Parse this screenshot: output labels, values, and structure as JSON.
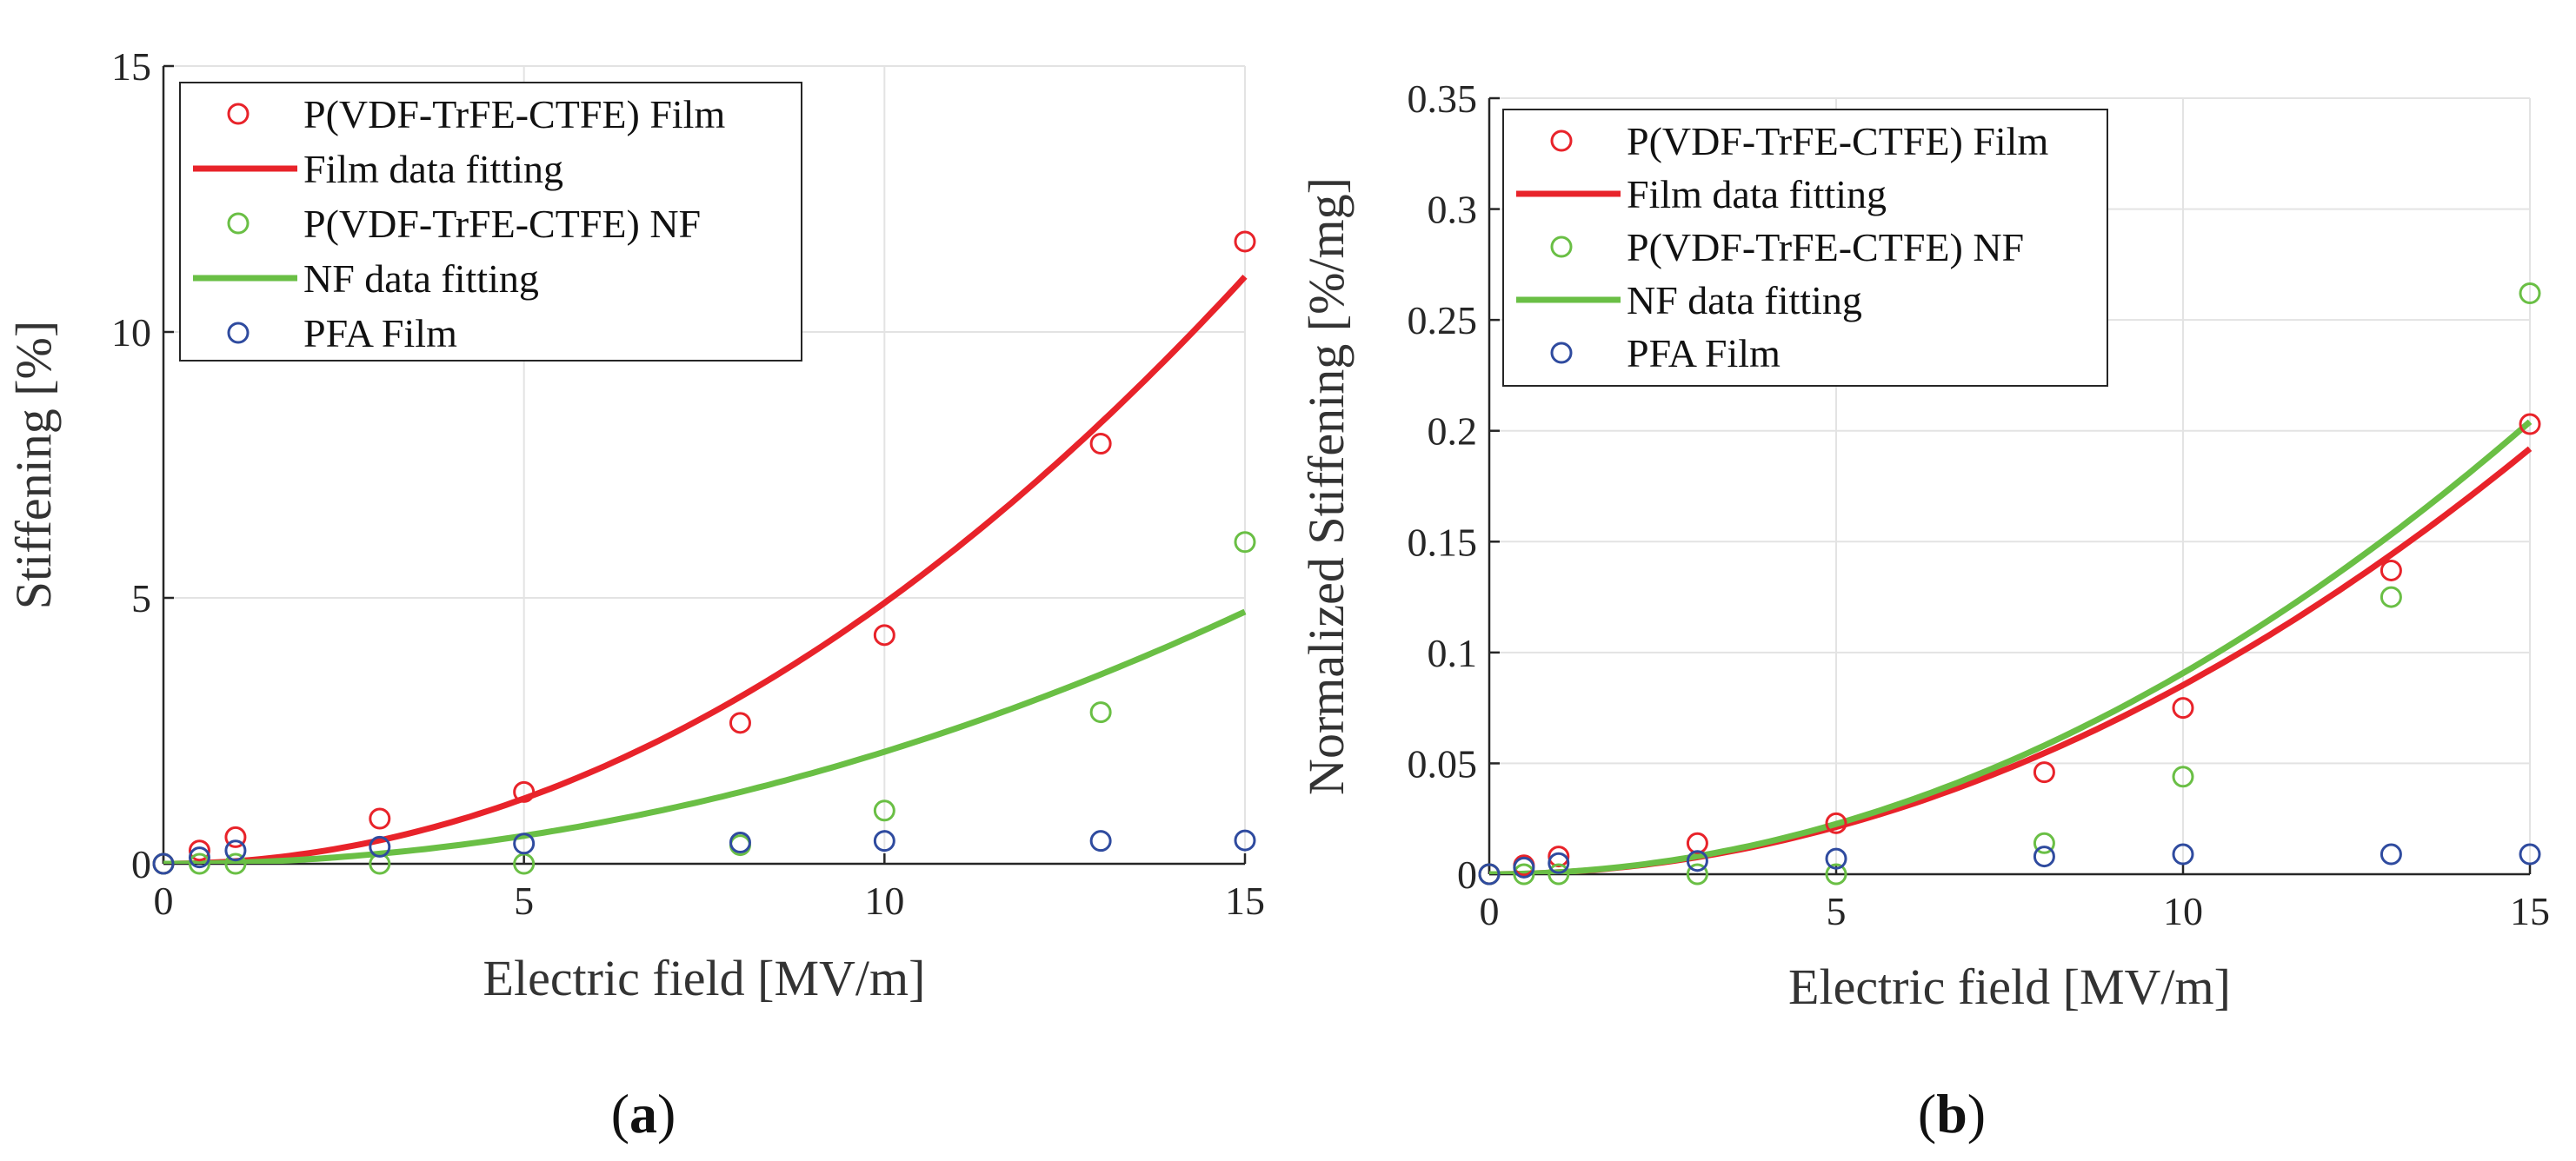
{
  "chart_data": [
    {
      "type": "scatter",
      "panel": "(a)",
      "panel_letter": "a",
      "xlabel": "Electric field [MV/m]",
      "ylabel": "Stiffening [%]",
      "xlim": [
        0,
        15
      ],
      "ylim": [
        0,
        15
      ],
      "xticks": [
        0,
        5,
        10,
        15
      ],
      "yticks": [
        0,
        5,
        10,
        15
      ],
      "grid": true,
      "legend_position": "top-left",
      "series": [
        {
          "name": "P(VDF-TrFE-CTFE) Film",
          "kind": "markers",
          "color": "#e8232a",
          "x": [
            0,
            0.5,
            1,
            3,
            5,
            8,
            10,
            13,
            15
          ],
          "y": [
            0,
            0.25,
            0.5,
            0.85,
            1.35,
            2.65,
            4.3,
            7.9,
            11.7
          ]
        },
        {
          "name": "Film data fitting",
          "kind": "line",
          "color": "#e8232a",
          "coef": 0.04906,
          "power": 2
        },
        {
          "name": "P(VDF-TrFE-CTFE) NF",
          "kind": "markers",
          "color": "#6abf45",
          "x": [
            0,
            0.5,
            1,
            3,
            5,
            8,
            10,
            13,
            15
          ],
          "y": [
            0,
            0,
            0,
            0,
            0,
            0.35,
            1.0,
            2.85,
            6.05
          ]
        },
        {
          "name": "NF data fitting",
          "kind": "line",
          "color": "#6abf45",
          "coef": 0.02107,
          "power": 2
        },
        {
          "name": "PFA Film",
          "kind": "markers",
          "color": "#2f4b9f",
          "x": [
            0,
            0.5,
            1,
            3,
            5,
            8,
            10,
            13,
            15
          ],
          "y": [
            0,
            0.12,
            0.25,
            0.32,
            0.38,
            0.4,
            0.43,
            0.43,
            0.44
          ]
        }
      ]
    },
    {
      "type": "scatter",
      "panel": "(b)",
      "panel_letter": "b",
      "xlabel": "Electric field [MV/m]",
      "ylabel": "Normalized Stiffening [%/mg]",
      "xlim": [
        0,
        15
      ],
      "ylim": [
        0,
        0.35
      ],
      "xticks": [
        0,
        5,
        10,
        15
      ],
      "yticks": [
        0,
        0.05,
        0.1,
        0.15,
        0.2,
        0.25,
        0.3,
        0.35
      ],
      "grid": true,
      "legend_position": "top-left",
      "series": [
        {
          "name": "P(VDF-TrFE-CTFE) Film",
          "kind": "markers",
          "color": "#e8232a",
          "x": [
            0,
            0.5,
            1,
            3,
            5,
            8,
            10,
            13,
            15
          ],
          "y": [
            0,
            0.004,
            0.008,
            0.014,
            0.023,
            0.046,
            0.075,
            0.137,
            0.203
          ]
        },
        {
          "name": "Film data fitting",
          "kind": "line",
          "color": "#e8232a",
          "coef": 0.000853,
          "power": 2
        },
        {
          "name": "P(VDF-TrFE-CTFE) NF",
          "kind": "markers",
          "color": "#6abf45",
          "x": [
            0,
            0.5,
            1,
            3,
            5,
            8,
            10,
            13,
            15
          ],
          "y": [
            0,
            0,
            0,
            0,
            0,
            0.014,
            0.044,
            0.125,
            0.262
          ]
        },
        {
          "name": "NF data fitting",
          "kind": "line",
          "color": "#6abf45",
          "coef": 0.000907,
          "power": 2
        },
        {
          "name": "PFA Film",
          "kind": "markers",
          "color": "#2f4b9f",
          "x": [
            0,
            0.5,
            1,
            3,
            5,
            8,
            10,
            13,
            15
          ],
          "y": [
            0,
            0.003,
            0.005,
            0.006,
            0.007,
            0.008,
            0.009,
            0.009,
            0.009
          ]
        }
      ]
    }
  ]
}
